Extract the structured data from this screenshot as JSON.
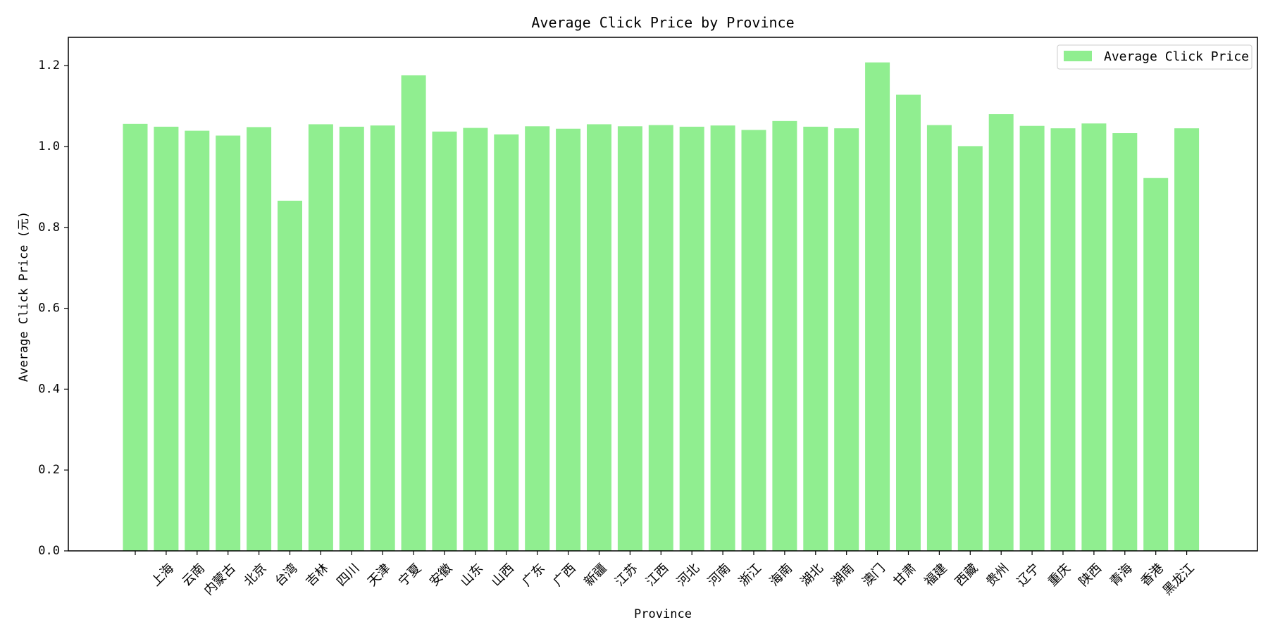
{
  "chart_data": {
    "type": "bar",
    "title": "Average Click Price by Province",
    "xlabel": "Province",
    "ylabel": "Average Click Price (元)",
    "ylim": [
      0,
      1.27
    ],
    "yticks": [
      0.0,
      0.2,
      0.4,
      0.6,
      0.8,
      1.0,
      1.2
    ],
    "ytick_labels": [
      "0.0",
      "0.2",
      "0.4",
      "0.6",
      "0.8",
      "1.0",
      "1.2"
    ],
    "grid": false,
    "legend": {
      "position": "top-right",
      "entries": [
        "Average Click Price"
      ]
    },
    "categories": [
      "",
      "上海",
      "云南",
      "内蒙古",
      "北京",
      "台湾",
      "吉林",
      "四川",
      "天津",
      "宁夏",
      "安徽",
      "山东",
      "山西",
      "广东",
      "广西",
      "新疆",
      "江苏",
      "江西",
      "河北",
      "河南",
      "浙江",
      "海南",
      "湖北",
      "湖南",
      "澳门",
      "甘肃",
      "福建",
      "西藏",
      "贵州",
      "辽宁",
      "重庆",
      "陕西",
      "青海",
      "香港",
      "黑龙江"
    ],
    "series": [
      {
        "name": "Average Click Price",
        "color": "#90ee90",
        "values": [
          1.056,
          1.049,
          1.039,
          1.027,
          1.048,
          0.866,
          1.055,
          1.049,
          1.052,
          1.176,
          1.037,
          1.046,
          1.03,
          1.05,
          1.044,
          1.055,
          1.05,
          1.053,
          1.049,
          1.052,
          1.041,
          1.063,
          1.049,
          1.045,
          1.208,
          1.128,
          1.053,
          1.001,
          1.08,
          1.051,
          1.045,
          1.057,
          1.033,
          0.922,
          1.045
        ]
      }
    ]
  }
}
